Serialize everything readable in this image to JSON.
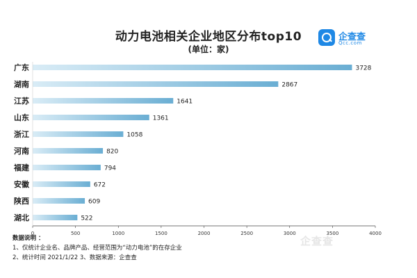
{
  "brand": {
    "name": "企查查",
    "domain": "Qcc.com",
    "watermark": "企查查"
  },
  "chart_data": {
    "type": "bar",
    "orientation": "horizontal",
    "title": "动力电池相关企业地区分布top10",
    "subtitle": "(单位：家)",
    "categories": [
      "广东",
      "湖南",
      "江苏",
      "山东",
      "浙江",
      "河南",
      "福建",
      "安徽",
      "陕西",
      "湖北"
    ],
    "values": [
      3728,
      2867,
      1641,
      1361,
      1058,
      820,
      794,
      672,
      609,
      522
    ],
    "xlim": [
      0,
      4000
    ],
    "xticks": [
      "0",
      "500",
      "1000",
      "1500",
      "2000",
      "2500",
      "3000",
      "3500",
      "4000"
    ],
    "grid": false,
    "colors": {
      "bar_start": "#d9ecf6",
      "bar_end": "#6aaed3",
      "axis": "#444444"
    }
  },
  "notes": {
    "heading": "数据说明 ：",
    "line1": "1、仅统计企业名、品牌产品、经营范围为“动力电池”的在存企业",
    "line2": "2、统计时间  2021/1/22       3、数据来源：企查查"
  }
}
